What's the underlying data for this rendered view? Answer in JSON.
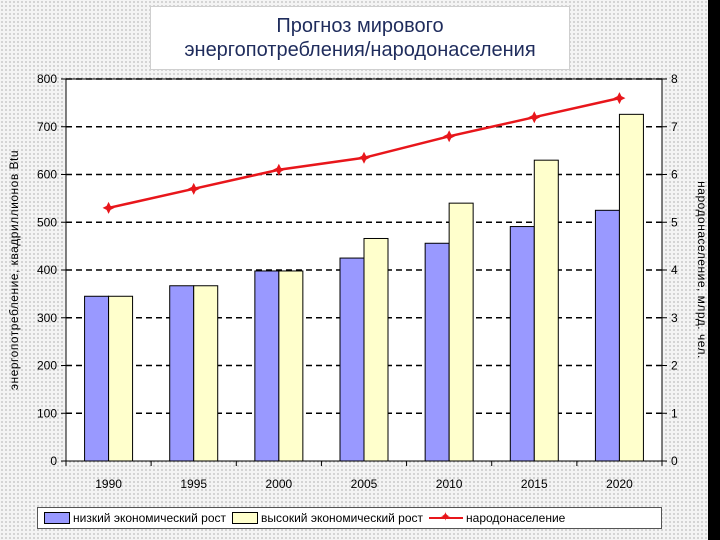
{
  "title": {
    "line1": "Прогноз мирового",
    "line2": "энергопотребления/народонаселения"
  },
  "chart_data": {
    "type": "bar",
    "categories": [
      "1990",
      "1995",
      "2000",
      "2005",
      "2010",
      "2015",
      "2020"
    ],
    "series": [
      {
        "name": "низкий экономический рост",
        "values": [
          345,
          367,
          398,
          425,
          456,
          491,
          525
        ],
        "color": "#9999ff",
        "axis": "left"
      },
      {
        "name": "высокий экономический рост",
        "values": [
          345,
          367,
          398,
          466,
          540,
          630,
          726
        ],
        "color": "#ffffcc",
        "axis": "left"
      },
      {
        "name": "народонаселение",
        "type": "line",
        "values": [
          5.3,
          5.7,
          6.1,
          6.35,
          6.8,
          7.2,
          7.6
        ],
        "color": "#e8161b",
        "axis": "right"
      }
    ],
    "ylabel": "энергопотребление, квадриллионов Btu",
    "y2label": "народонаселение, млрд. чел.",
    "ylim": [
      0,
      800
    ],
    "y2lim": [
      0,
      8
    ],
    "yticks": [
      "0",
      "100",
      "200",
      "300",
      "400",
      "500",
      "600",
      "700",
      "800"
    ],
    "y2ticks": [
      "0",
      "1",
      "2",
      "3",
      "4",
      "5",
      "6",
      "7",
      "8"
    ],
    "grid": true,
    "legend_position": "bottom"
  }
}
